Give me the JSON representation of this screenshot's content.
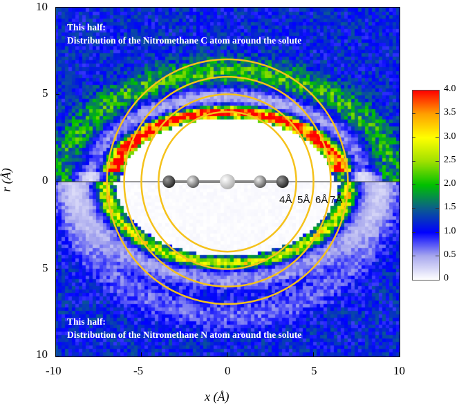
{
  "chart_data": {
    "type": "heatmap",
    "xlabel": "x (Å)",
    "ylabel": "r (Å)",
    "xlim": [
      -10,
      10
    ],
    "ylim_top": [
      0,
      10
    ],
    "ylim_bottom": [
      0,
      10
    ],
    "x_ticks": [
      "-10",
      "-5",
      "0",
      "5",
      "10"
    ],
    "y_ticks_top": [
      "10",
      "5",
      "0"
    ],
    "y_ticks_bottom": [
      "5",
      "10"
    ],
    "colorbar": {
      "range": [
        0,
        4.0
      ],
      "ticks": [
        "4.0",
        "3.5",
        "3.0",
        "2.5",
        "2.0",
        "1.5",
        "1.0",
        "0.5",
        "0"
      ],
      "colors": {
        "0": "#ffffff",
        "0.5": "#a8a8ee",
        "1.0": "#0000ff",
        "1.5": "#0b5c8e",
        "2.0": "#00c000",
        "2.5": "#9fe000",
        "3.0": "#ffff00",
        "3.5": "#ffa000",
        "4.0": "#ff0000"
      }
    },
    "top_half": {
      "line1": "This half:",
      "line2": "Distribution of the Nitromethane C atom around the solute"
    },
    "bottom_half": {
      "line1": "This half:",
      "line2": "Distribution of the Nitromethane N atom around the solute"
    },
    "circles": [
      {
        "radius": 4,
        "label": "4Å"
      },
      {
        "radius": 5,
        "label": "5Å"
      },
      {
        "radius": 6,
        "label": "6Å"
      },
      {
        "radius": 7,
        "label": "7Å"
      }
    ],
    "circle_color": "#f5c21b",
    "grid": false
  }
}
